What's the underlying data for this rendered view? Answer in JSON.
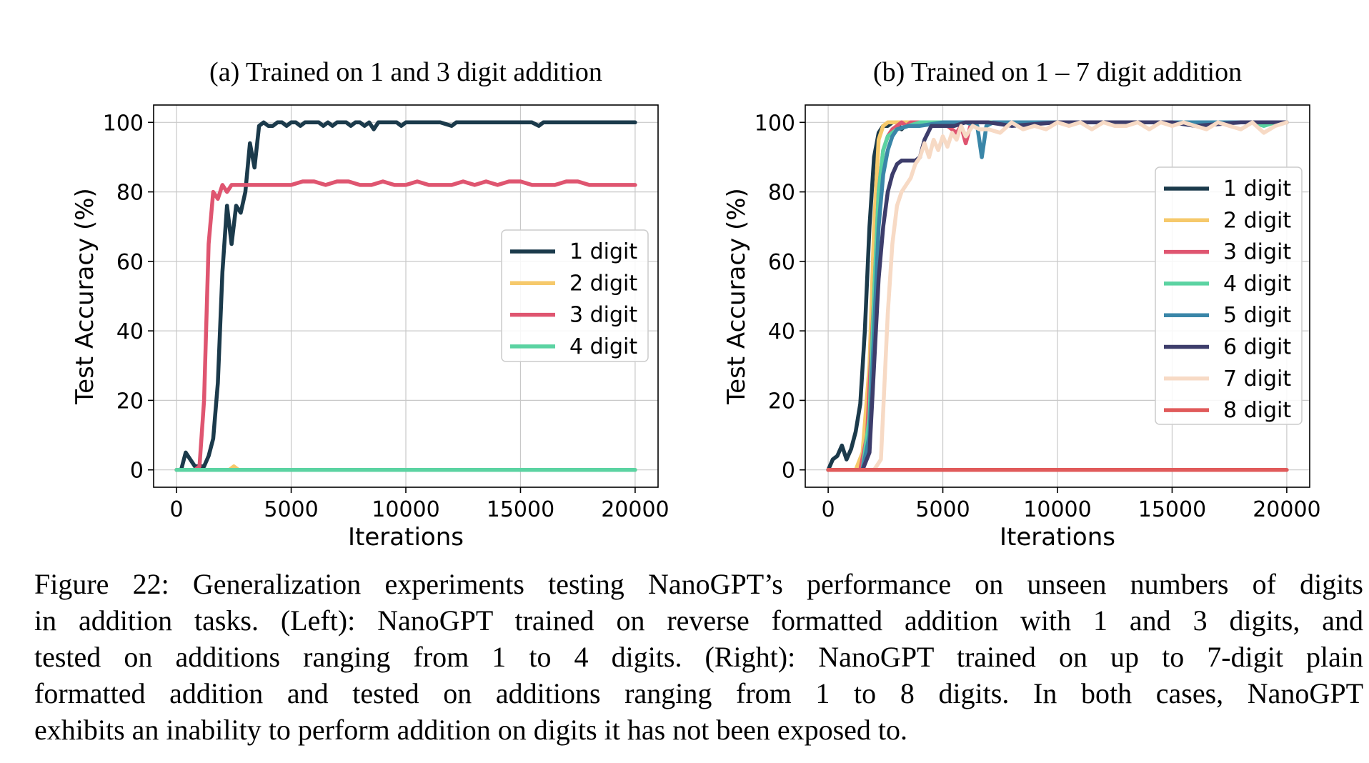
{
  "chart_data": [
    {
      "type": "line",
      "title": "(a) Trained on 1 and 3 digit addition",
      "xlabel": "Iterations",
      "ylabel": "Test Accuracy (%)",
      "xlim": [
        -1000,
        21000
      ],
      "ylim": [
        -5,
        105
      ],
      "xticks": [
        0,
        5000,
        10000,
        15000,
        20000
      ],
      "yticks": [
        0,
        20,
        40,
        60,
        80,
        100
      ],
      "grid": true,
      "legend_position": "center-right",
      "series": [
        {
          "name": "1 digit",
          "color": "#1b3a4b",
          "x": [
            0,
            200,
            400,
            600,
            800,
            1000,
            1200,
            1400,
            1600,
            1800,
            2000,
            2200,
            2400,
            2600,
            2800,
            3000,
            3200,
            3400,
            3600,
            3800,
            4000,
            4200,
            4400,
            4600,
            4800,
            5000,
            5200,
            5400,
            5600,
            5800,
            6000,
            6200,
            6400,
            6600,
            6800,
            7000,
            7200,
            7400,
            7600,
            7800,
            8000,
            8200,
            8400,
            8600,
            8800,
            9000,
            9200,
            9400,
            9600,
            9800,
            10000,
            10500,
            11000,
            11500,
            12000,
            12200,
            12500,
            13000,
            14000,
            15000,
            15500,
            15800,
            16000,
            17000,
            18000,
            19000,
            20000
          ],
          "y": [
            0,
            0,
            5,
            3,
            1,
            1,
            1,
            4,
            9,
            25,
            57,
            76,
            65,
            76,
            74,
            80,
            94,
            87,
            99,
            100,
            99,
            99,
            100,
            100,
            99,
            100,
            100,
            99,
            100,
            100,
            100,
            100,
            99,
            100,
            99,
            100,
            100,
            100,
            99,
            100,
            100,
            99,
            100,
            98,
            100,
            100,
            100,
            100,
            100,
            99,
            100,
            100,
            100,
            100,
            99,
            100,
            100,
            100,
            100,
            100,
            100,
            99,
            100,
            100,
            100,
            100,
            100
          ]
        },
        {
          "name": "2 digit",
          "color": "#f6c96b",
          "x": [
            0,
            2000,
            2300,
            2500,
            2700,
            3000,
            20000
          ],
          "y": [
            0,
            0,
            0,
            1,
            0,
            0,
            0
          ]
        },
        {
          "name": "3 digit",
          "color": "#df5570",
          "x": [
            0,
            200,
            400,
            600,
            800,
            1000,
            1200,
            1400,
            1600,
            1800,
            2000,
            2200,
            2400,
            2600,
            2800,
            3000,
            3500,
            4000,
            4500,
            5000,
            5500,
            6000,
            6500,
            7000,
            7500,
            8000,
            8500,
            9000,
            9500,
            10000,
            10500,
            11000,
            11500,
            12000,
            12500,
            13000,
            13500,
            14000,
            14500,
            15000,
            15500,
            16000,
            16500,
            17000,
            17500,
            18000,
            18500,
            19000,
            19500,
            20000
          ],
          "y": [
            0,
            0,
            0,
            0,
            0,
            1,
            20,
            65,
            80,
            78,
            82,
            80,
            82,
            82,
            82,
            82,
            82,
            82,
            82,
            82,
            83,
            83,
            82,
            83,
            83,
            82,
            82,
            83,
            82,
            82,
            83,
            82,
            82,
            82,
            83,
            82,
            83,
            82,
            83,
            83,
            82,
            82,
            82,
            83,
            83,
            82,
            82,
            82,
            82,
            82
          ]
        },
        {
          "name": "4 digit",
          "color": "#5bd3a2",
          "x": [
            0,
            20000
          ],
          "y": [
            0,
            0
          ]
        }
      ]
    },
    {
      "type": "line",
      "title": "(b) Trained on 1 – 7 digit addition",
      "xlabel": "Iterations",
      "ylabel": "Test Accuracy (%)",
      "xlim": [
        -1000,
        21000
      ],
      "ylim": [
        -5,
        105
      ],
      "xticks": [
        0,
        5000,
        10000,
        15000,
        20000
      ],
      "yticks": [
        0,
        20,
        40,
        60,
        80,
        100
      ],
      "grid": true,
      "legend_position": "upper-right",
      "series": [
        {
          "name": "1 digit",
          "color": "#1b3a4b",
          "x": [
            0,
            200,
            400,
            600,
            800,
            1000,
            1200,
            1400,
            1600,
            1800,
            2000,
            2200,
            2400,
            2600,
            2800,
            3000,
            3200,
            3500,
            4000,
            5000,
            6000,
            8000,
            10000,
            12000,
            15000,
            18000,
            20000
          ],
          "y": [
            0,
            3,
            4,
            7,
            3,
            6,
            11,
            19,
            40,
            70,
            90,
            97,
            99,
            99,
            100,
            100,
            98,
            100,
            100,
            100,
            100,
            100,
            100,
            100,
            100,
            100,
            100
          ]
        },
        {
          "name": "2 digit",
          "color": "#f6c96b",
          "x": [
            0,
            1200,
            1500,
            1800,
            2000,
            2200,
            2400,
            2600,
            2800,
            3000,
            3500,
            4000,
            5000,
            8000,
            12000,
            16000,
            20000
          ],
          "y": [
            0,
            0,
            5,
            30,
            70,
            95,
            99,
            100,
            100,
            100,
            100,
            100,
            100,
            100,
            100,
            100,
            100
          ]
        },
        {
          "name": "3 digit",
          "color": "#df5570",
          "x": [
            0,
            1400,
            1700,
            2000,
            2200,
            2400,
            2600,
            2800,
            3000,
            3200,
            3400,
            3600,
            4000,
            5000,
            5600,
            5800,
            6000,
            6200,
            6500,
            7000,
            9000,
            12000,
            16000,
            20000
          ],
          "y": [
            0,
            0,
            10,
            50,
            80,
            92,
            96,
            98,
            99,
            100,
            99,
            100,
            100,
            100,
            97,
            99,
            94,
            99,
            100,
            100,
            100,
            100,
            100,
            100
          ]
        },
        {
          "name": "4 digit",
          "color": "#5bd3a2",
          "x": [
            0,
            1500,
            1800,
            2000,
            2200,
            2400,
            2600,
            2800,
            3000,
            3500,
            4000,
            6000,
            9000,
            12000,
            15000,
            17000,
            18500,
            19000,
            19500,
            20000
          ],
          "y": [
            0,
            0,
            15,
            50,
            80,
            92,
            96,
            97,
            98,
            99,
            100,
            100,
            100,
            100,
            100,
            100,
            100,
            99,
            100,
            100
          ]
        },
        {
          "name": "5 digit",
          "color": "#3a86a8",
          "x": [
            0,
            1500,
            1800,
            2000,
            2200,
            2400,
            2600,
            2800,
            3000,
            3500,
            4000,
            5000,
            6000,
            6500,
            6700,
            6900,
            7200,
            8000,
            10000,
            13000,
            16000,
            20000
          ],
          "y": [
            0,
            0,
            10,
            40,
            70,
            85,
            92,
            96,
            98,
            99,
            99,
            100,
            100,
            99,
            90,
            99,
            100,
            100,
            100,
            100,
            100,
            100
          ]
        },
        {
          "name": "6 digit",
          "color": "#3d3d6b",
          "x": [
            0,
            1500,
            1800,
            2000,
            2200,
            2400,
            2600,
            2800,
            3000,
            3200,
            3400,
            3600,
            3800,
            4000,
            4200,
            4500,
            5000,
            5500,
            6000,
            7000,
            8000,
            10000,
            12000,
            14000,
            15000,
            16000,
            18000,
            20000
          ],
          "y": [
            0,
            0,
            5,
            30,
            55,
            70,
            80,
            85,
            88,
            89,
            89,
            89,
            89,
            90,
            95,
            99,
            99,
            99,
            100,
            100,
            99,
            100,
            100,
            100,
            100,
            99,
            100,
            100
          ]
        },
        {
          "name": "7 digit",
          "color": "#f7dac5",
          "x": [
            0,
            2000,
            2300,
            2600,
            2800,
            3000,
            3200,
            3400,
            3600,
            3800,
            4000,
            4200,
            4400,
            4600,
            4800,
            5000,
            5200,
            5400,
            5600,
            5800,
            6000,
            6300,
            6600,
            7000,
            7500,
            8000,
            8500,
            9000,
            9500,
            10000,
            10500,
            11000,
            11500,
            12000,
            12500,
            13000,
            13500,
            14000,
            14500,
            15000,
            15500,
            16000,
            16500,
            17000,
            17500,
            18000,
            18500,
            19000,
            19500,
            20000
          ],
          "y": [
            0,
            0,
            3,
            45,
            65,
            76,
            80,
            82,
            84,
            88,
            90,
            94,
            90,
            95,
            92,
            96,
            93,
            97,
            95,
            99,
            96,
            99,
            98,
            98,
            97,
            100,
            98,
            99,
            98,
            100,
            99,
            100,
            98,
            100,
            99,
            99,
            100,
            98,
            100,
            99,
            100,
            99,
            98,
            100,
            99,
            98,
            100,
            97,
            99,
            100
          ]
        },
        {
          "name": "8 digit",
          "color": "#e05a5a",
          "x": [
            0,
            20000
          ],
          "y": [
            0,
            0
          ]
        }
      ]
    }
  ],
  "caption": {
    "lines": [
      "Figure 22: Generalization experiments testing NanoGPT’s performance on unseen numbers of digits",
      "in addition tasks. (Left): NanoGPT trained on reverse formatted addition with 1 and 3 digits, and",
      "tested on additions ranging from 1 to 4 digits. (Right): NanoGPT trained on up to 7-digit plain",
      "formatted addition and tested on additions ranging from 1 to 8 digits. In both cases, NanoGPT",
      "exhibits an inability to perform addition on digits it has not been exposed to."
    ]
  }
}
